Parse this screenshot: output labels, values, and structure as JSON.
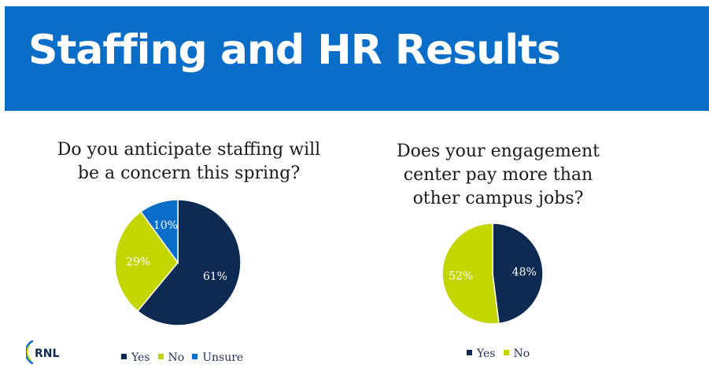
{
  "header": {
    "title": "Staffing and HR Results",
    "color": "#0a6ec8"
  },
  "logo": {
    "text": "RNL"
  },
  "chart_data": [
    {
      "type": "pie",
      "title": "Do you anticipate staffing will be a concern this spring?",
      "title_lines": [
        "Do you anticipate staffing will",
        "be a concern this spring?"
      ],
      "categories": [
        "Yes",
        "No",
        "Unsure"
      ],
      "values": [
        61,
        29,
        10
      ],
      "labels": [
        "61%",
        "29%",
        "10%"
      ],
      "colors": [
        "#0d2a52",
        "#c4d600",
        "#0a6ec8"
      ],
      "label_colors": [
        "#ffffff",
        "#ffffff",
        "#ffffff"
      ],
      "start_angle_deg": 0,
      "direction": "clockwise",
      "legend": "bottom"
    },
    {
      "type": "pie",
      "title": "Does your engagement center pay more than other campus jobs?",
      "title_lines": [
        "Does your engagement",
        "center pay more than",
        "other campus jobs?"
      ],
      "categories": [
        "Yes",
        "No"
      ],
      "values": [
        48,
        52
      ],
      "labels": [
        "48%",
        "52%"
      ],
      "colors": [
        "#0d2a52",
        "#c4d600"
      ],
      "label_colors": [
        "#ffffff",
        "#ffffff"
      ],
      "start_angle_deg": 0,
      "direction": "clockwise",
      "legend": "bottom"
    }
  ]
}
